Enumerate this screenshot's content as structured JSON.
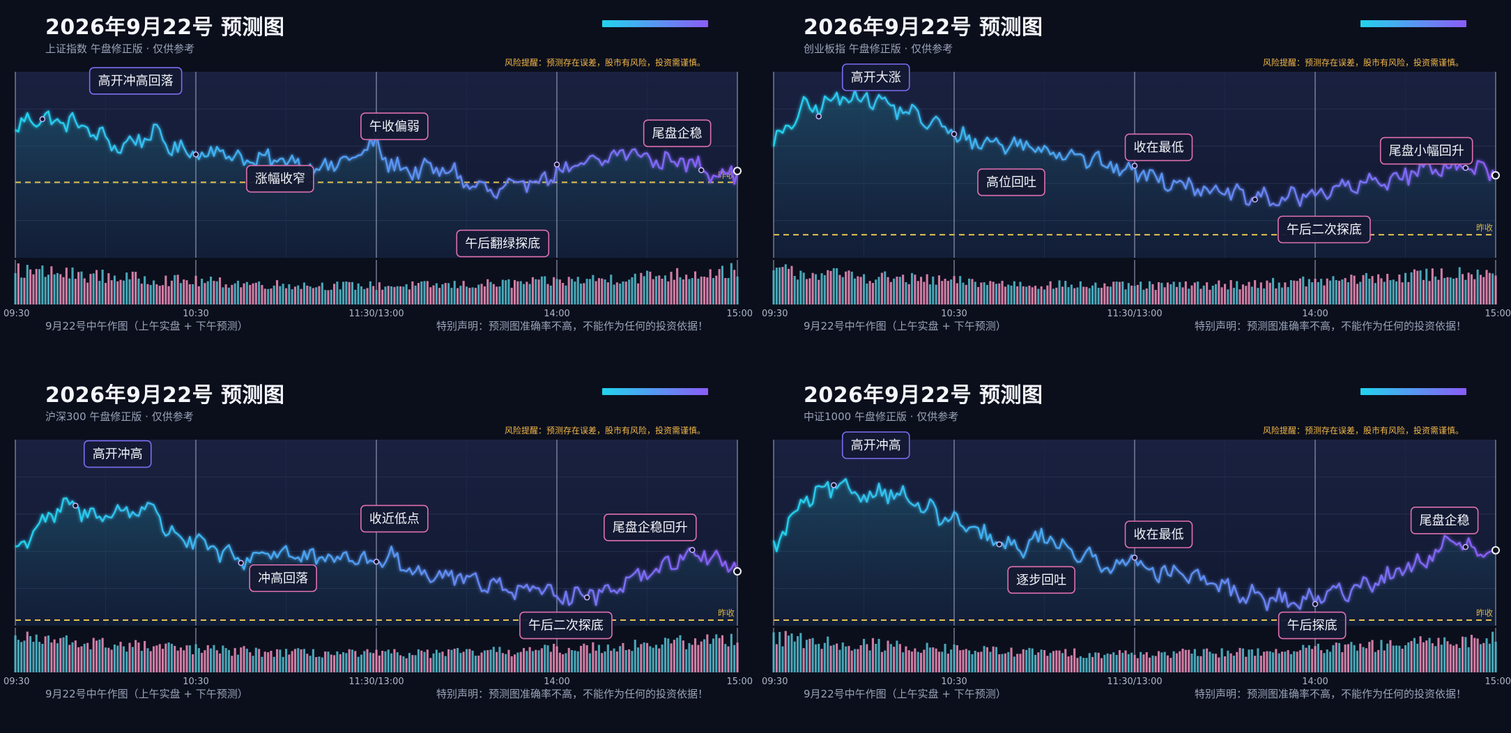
{
  "colors": {
    "background": "#0b0f1c",
    "plot_background": "#111a33",
    "line_start": "#22d3ee",
    "line_end": "#8b5cf6",
    "volume_up": "#4fb7c9",
    "volume_down": "#e58ab5",
    "prev_close": "#e6c350",
    "risk_text": "#f0b648",
    "annotation_border_cyan": "#7c6df2",
    "annotation_border_pink": "#e070b0"
  },
  "common": {
    "title": "2026年9月22号 预测图",
    "risk": "风险提醒：预测存在误差，股市有风险，投资需谨慎。",
    "footer_left": "9月22号中午作图（上午实盘 + 下午预测）",
    "footer_right": "特别声明：预测图准确率不高，不能作为任何的投资依据！",
    "prev_close_label": "昨收"
  },
  "chart_data": [
    {
      "type": "line",
      "title": "2026年9月22号 预测图",
      "subtitle": "上证指数 午盘修正版 · 仅供参考",
      "x_ticks": [
        "09:30",
        "10:30",
        "11:30/13:00",
        "14:00",
        "15:00"
      ],
      "y_range": [
        0,
        100
      ],
      "prev_close": 40,
      "keypoints": [
        [
          0,
          68
        ],
        [
          5,
          78
        ],
        [
          12,
          75
        ],
        [
          20,
          74
        ],
        [
          25,
          69
        ],
        [
          35,
          60
        ],
        [
          45,
          68
        ],
        [
          55,
          58
        ],
        [
          70,
          57
        ],
        [
          78,
          52
        ],
        [
          90,
          53
        ],
        [
          100,
          48
        ],
        [
          110,
          52
        ],
        [
          120,
          62
        ],
        [
          124,
          51
        ],
        [
          130,
          47
        ],
        [
          135,
          47
        ],
        [
          145,
          47
        ],
        [
          150,
          39
        ],
        [
          160,
          34
        ],
        [
          166,
          37
        ],
        [
          175,
          43
        ],
        [
          190,
          50
        ],
        [
          205,
          58
        ],
        [
          212,
          52
        ],
        [
          220,
          53
        ],
        [
          230,
          47
        ],
        [
          240,
          45
        ]
      ],
      "annotations": [
        {
          "text": "高开冲高回落",
          "x": 40,
          "y": 98,
          "at": 9,
          "cls": "cyan"
        },
        {
          "text": "涨幅收窄",
          "x": 88,
          "y": 42,
          "at": 60,
          "cls": "pink"
        },
        {
          "text": "午收偏弱",
          "x": 126,
          "y": 72,
          "at": 120,
          "cls": "pink"
        },
        {
          "text": "午后翻绿探底",
          "x": 162,
          "y": 5,
          "at": 180,
          "cls": "pink"
        },
        {
          "text": "尾盘企稳",
          "x": 220,
          "y": 68,
          "at": 228,
          "cls": "pink"
        }
      ]
    },
    {
      "type": "line",
      "title": "2026年9月22号 预测图",
      "subtitle": "创业板指 午盘修正版 · 仅供参考",
      "x_ticks": [
        "09:30",
        "10:30",
        "11:30/13:00",
        "14:00",
        "15:00"
      ],
      "y_range": [
        0,
        100
      ],
      "prev_close": 10,
      "keypoints": [
        [
          0,
          62
        ],
        [
          10,
          82
        ],
        [
          18,
          85
        ],
        [
          25,
          90
        ],
        [
          32,
          88
        ],
        [
          42,
          82
        ],
        [
          55,
          72
        ],
        [
          65,
          64
        ],
        [
          75,
          62
        ],
        [
          85,
          61
        ],
        [
          100,
          56
        ],
        [
          110,
          50
        ],
        [
          120,
          46
        ],
        [
          130,
          42
        ],
        [
          140,
          38
        ],
        [
          150,
          33
        ],
        [
          160,
          31
        ],
        [
          170,
          30
        ],
        [
          180,
          34
        ],
        [
          195,
          38
        ],
        [
          205,
          42
        ],
        [
          215,
          47
        ],
        [
          225,
          50
        ],
        [
          240,
          45
        ]
      ],
      "annotations": [
        {
          "text": "高开大涨",
          "x": 34,
          "y": 100,
          "at": 15,
          "cls": "cyan"
        },
        {
          "text": "高位回吐",
          "x": 79,
          "y": 40,
          "at": 60,
          "cls": "pink"
        },
        {
          "text": "收在最低",
          "x": 128,
          "y": 60,
          "at": 120,
          "cls": "pink"
        },
        {
          "text": "午后二次探底",
          "x": 183,
          "y": 13,
          "at": 160,
          "cls": "pink"
        },
        {
          "text": "尾盘小幅回升",
          "x": 217,
          "y": 58,
          "at": 230,
          "cls": "pink"
        }
      ]
    },
    {
      "type": "line",
      "title": "2026年9月22号 预测图",
      "subtitle": "沪深300 午盘修正版 · 仅供参考",
      "x_ticks": [
        "09:30",
        "10:30",
        "11:30/13:00",
        "14:00",
        "15:00"
      ],
      "y_range": [
        0,
        100
      ],
      "prev_close": 0,
      "keypoints": [
        [
          0,
          40
        ],
        [
          8,
          55
        ],
        [
          18,
          66
        ],
        [
          25,
          60
        ],
        [
          38,
          62
        ],
        [
          45,
          66
        ],
        [
          50,
          52
        ],
        [
          60,
          44
        ],
        [
          75,
          34
        ],
        [
          85,
          40
        ],
        [
          100,
          34
        ],
        [
          112,
          36
        ],
        [
          120,
          32
        ],
        [
          125,
          40
        ],
        [
          130,
          30
        ],
        [
          140,
          26
        ],
        [
          150,
          24
        ],
        [
          160,
          20
        ],
        [
          170,
          17
        ],
        [
          180,
          15
        ],
        [
          195,
          15
        ],
        [
          205,
          25
        ],
        [
          215,
          30
        ],
        [
          225,
          40
        ],
        [
          240,
          30
        ]
      ],
      "annotations": [
        {
          "text": "高开冲高",
          "x": 34,
          "y": 95,
          "at": 20,
          "cls": "cyan"
        },
        {
          "text": "冲高回落",
          "x": 89,
          "y": 24,
          "at": 75,
          "cls": "pink"
        },
        {
          "text": "收近低点",
          "x": 126,
          "y": 58,
          "at": 120,
          "cls": "pink"
        },
        {
          "text": "午后二次探底",
          "x": 183,
          "y": -3,
          "at": 190,
          "cls": "pink"
        },
        {
          "text": "尾盘企稳回升",
          "x": 211,
          "y": 53,
          "at": 225,
          "cls": "pink"
        }
      ]
    },
    {
      "type": "line",
      "title": "2026年9月22号 预测图",
      "subtitle": "中证1000 午盘修正版 · 仅供参考",
      "x_ticks": [
        "09:30",
        "10:30",
        "11:30/13:00",
        "14:00",
        "15:00"
      ],
      "y_range": [
        0,
        100
      ],
      "prev_close": 0,
      "keypoints": [
        [
          0,
          42
        ],
        [
          10,
          68
        ],
        [
          20,
          76
        ],
        [
          30,
          72
        ],
        [
          40,
          74
        ],
        [
          45,
          68
        ],
        [
          55,
          60
        ],
        [
          70,
          48
        ],
        [
          80,
          40
        ],
        [
          90,
          48
        ],
        [
          100,
          40
        ],
        [
          110,
          30
        ],
        [
          118,
          36
        ],
        [
          125,
          30
        ],
        [
          135,
          25
        ],
        [
          145,
          22
        ],
        [
          155,
          15
        ],
        [
          165,
          12
        ],
        [
          175,
          10
        ],
        [
          185,
          14
        ],
        [
          195,
          20
        ],
        [
          205,
          25
        ],
        [
          215,
          33
        ],
        [
          225,
          45
        ],
        [
          240,
          35
        ]
      ],
      "annotations": [
        {
          "text": "高开冲高",
          "x": 34,
          "y": 100,
          "at": 20,
          "cls": "cyan"
        },
        {
          "text": "逐步回吐",
          "x": 89,
          "y": 23,
          "at": 75,
          "cls": "pink"
        },
        {
          "text": "收在最低",
          "x": 128,
          "y": 49,
          "at": 120,
          "cls": "pink"
        },
        {
          "text": "午后探底",
          "x": 179,
          "y": -3,
          "at": 180,
          "cls": "pink"
        },
        {
          "text": "尾盘企稳",
          "x": 223,
          "y": 57,
          "at": 230,
          "cls": "pink"
        }
      ]
    }
  ]
}
